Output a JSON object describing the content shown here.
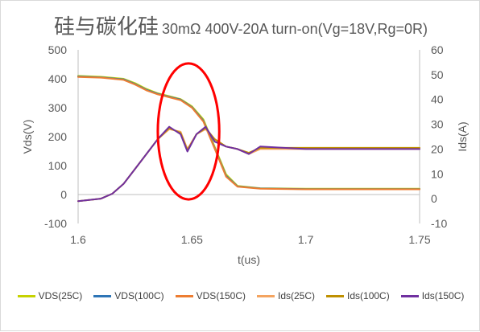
{
  "chart_data": {
    "type": "line",
    "title": "硅与碳化硅",
    "subtitle": "30mΩ 400V-20A turn-on(Vg=18V,Rg=0R)",
    "xlabel": "t(us)",
    "ylabel_left": "Vds(V)",
    "ylabel_right": "Ids(A)",
    "xlim": [
      1.6,
      1.75
    ],
    "ylim_left": [
      -100,
      500
    ],
    "ylim_right": [
      -10,
      60
    ],
    "x_ticks": [
      "1.6",
      "1.65",
      "1.7",
      "1.75"
    ],
    "y_left_ticks": [
      "500",
      "400",
      "300",
      "200",
      "100",
      "0",
      "-100"
    ],
    "y_right_ticks": [
      "60",
      "50",
      "40",
      "30",
      "20",
      "10",
      "0",
      "-10"
    ],
    "grid": false,
    "legend_position": "bottom",
    "series": [
      {
        "name": "VDS(25C)",
        "axis": "left",
        "color": "#c6d200",
        "x": [
          1.6,
          1.61,
          1.62,
          1.625,
          1.63,
          1.635,
          1.64,
          1.645,
          1.65,
          1.655,
          1.66,
          1.665,
          1.67,
          1.68,
          1.7,
          1.72,
          1.75
        ],
        "y": [
          410,
          407,
          400,
          385,
          365,
          350,
          340,
          330,
          305,
          260,
          165,
          70,
          30,
          22,
          20,
          20,
          20
        ]
      },
      {
        "name": "VDS(100C)",
        "axis": "left",
        "color": "#2e75b6",
        "x": [
          1.6,
          1.61,
          1.62,
          1.625,
          1.63,
          1.635,
          1.64,
          1.645,
          1.65,
          1.655,
          1.66,
          1.665,
          1.67,
          1.68,
          1.7,
          1.72,
          1.75
        ],
        "y": [
          408,
          405,
          398,
          382,
          362,
          348,
          338,
          328,
          302,
          255,
          160,
          65,
          28,
          21,
          19,
          19,
          19
        ]
      },
      {
        "name": "VDS(150C)",
        "axis": "left",
        "color": "#ed7d31",
        "x": [
          1.6,
          1.61,
          1.62,
          1.625,
          1.63,
          1.635,
          1.64,
          1.645,
          1.65,
          1.655,
          1.66,
          1.665,
          1.67,
          1.68,
          1.7,
          1.72,
          1.75
        ],
        "y": [
          406,
          404,
          396,
          380,
          360,
          346,
          336,
          326,
          300,
          252,
          158,
          62,
          27,
          20,
          18,
          18,
          18
        ]
      },
      {
        "name": "Ids(25C)",
        "axis": "right",
        "color": "#f4a460",
        "x": [
          1.6,
          1.61,
          1.615,
          1.62,
          1.625,
          1.63,
          1.635,
          1.64,
          1.645,
          1.648,
          1.652,
          1.656,
          1.66,
          1.665,
          1.67,
          1.675,
          1.68,
          1.7,
          1.75
        ],
        "y": [
          -1,
          0,
          2,
          6,
          12,
          18,
          24,
          28,
          27,
          20,
          26,
          28,
          24,
          21,
          20,
          18,
          20,
          20,
          20
        ]
      },
      {
        "name": "Ids(100C)",
        "axis": "right",
        "color": "#bf9000",
        "x": [
          1.6,
          1.61,
          1.615,
          1.62,
          1.625,
          1.63,
          1.635,
          1.64,
          1.645,
          1.648,
          1.652,
          1.656,
          1.66,
          1.665,
          1.67,
          1.675,
          1.68,
          1.7,
          1.75
        ],
        "y": [
          -1,
          0,
          2,
          6,
          12,
          18,
          24,
          28.5,
          26.5,
          19.5,
          26,
          28.5,
          24,
          21,
          20,
          18.5,
          20.5,
          20.5,
          20.5
        ]
      },
      {
        "name": "Ids(150C)",
        "axis": "right",
        "color": "#7030a0",
        "x": [
          1.6,
          1.61,
          1.615,
          1.62,
          1.625,
          1.63,
          1.635,
          1.64,
          1.645,
          1.648,
          1.652,
          1.656,
          1.66,
          1.665,
          1.67,
          1.675,
          1.68,
          1.7,
          1.75
        ],
        "y": [
          -1,
          0,
          2,
          6,
          12,
          18,
          24,
          29,
          26,
          19,
          26,
          29,
          23,
          21,
          20,
          18,
          21,
          20,
          20
        ]
      }
    ],
    "annotation": {
      "shape": "ellipse",
      "color": "#ff0000",
      "x_center": 1.6485,
      "y_center_left": 218,
      "x_radius": 0.0135,
      "y_radius_left": 235
    }
  }
}
